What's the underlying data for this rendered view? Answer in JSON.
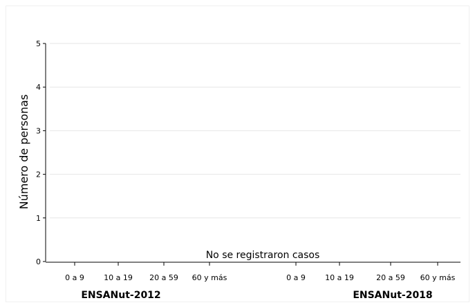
{
  "chart_data": {
    "type": "bar",
    "ylabel": "Número de personas",
    "ylim": [
      0,
      5
    ],
    "yticks": [
      0,
      1,
      2,
      3,
      4,
      5
    ],
    "grid": true,
    "groups": [
      {
        "name": "ENSANut-2012",
        "categories": [
          "0 a 9",
          "10 a 19",
          "20 a 59",
          "60 y más"
        ],
        "values": [
          0,
          0,
          0,
          0
        ]
      },
      {
        "name": "ENSANut-2018",
        "categories": [
          "0 a 9",
          "10 a 19",
          "20 a 59",
          "60 y más"
        ],
        "values": [
          0,
          0,
          0,
          0
        ]
      }
    ],
    "annotation": "No se registraron casos"
  }
}
